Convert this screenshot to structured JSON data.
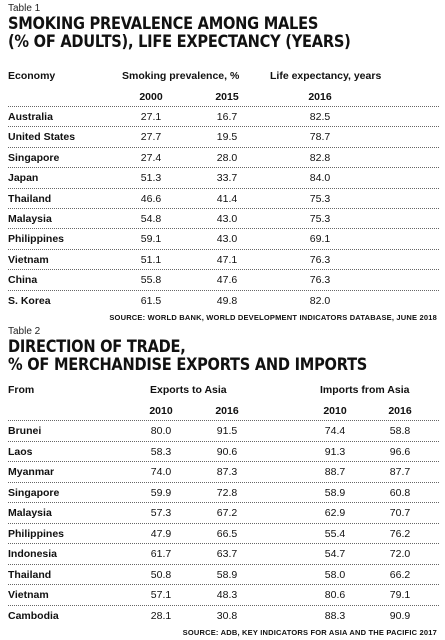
{
  "table1": {
    "label": "Table 1",
    "title_line1": "SMOKING PREVALENCE AMONG MALES",
    "title_line2": "(% OF ADULTS), LIFE EXPECTANCY (YEARS)",
    "col_economy": "Economy",
    "col_smoking": "Smoking prevalence, %",
    "col_life": "Life expectancy, years",
    "year_a": "2000",
    "year_b": "2015",
    "year_c": "2016",
    "rows": [
      {
        "name": "Australia",
        "a": "27.1",
        "b": "16.7",
        "c": "82.5"
      },
      {
        "name": "United States",
        "a": "27.7",
        "b": "19.5",
        "c": "78.7"
      },
      {
        "name": "Singapore",
        "a": "27.4",
        "b": "28.0",
        "c": "82.8"
      },
      {
        "name": "Japan",
        "a": "51.3",
        "b": "33.7",
        "c": "84.0"
      },
      {
        "name": "Thailand",
        "a": "46.6",
        "b": "41.4",
        "c": "75.3"
      },
      {
        "name": "Malaysia",
        "a": "54.8",
        "b": "43.0",
        "c": "75.3"
      },
      {
        "name": "Philippines",
        "a": "59.1",
        "b": "43.0",
        "c": "69.1"
      },
      {
        "name": "Vietnam",
        "a": "51.1",
        "b": "47.1",
        "c": "76.3"
      },
      {
        "name": "China",
        "a": "55.8",
        "b": "47.6",
        "c": "76.3"
      },
      {
        "name": "S. Korea",
        "a": "61.5",
        "b": "49.8",
        "c": "82.0"
      }
    ],
    "source": "SOURCE: WORLD BANK, WORLD DEVELOPMENT INDICATORS DATABASE, JUNE 2018"
  },
  "table2": {
    "label": "Table 2",
    "title_line1": "DIRECTION OF TRADE,",
    "title_line2": "% OF MERCHANDISE EXPORTS AND IMPORTS",
    "col_from": "From",
    "col_exports": "Exports to Asia",
    "col_imports": "Imports from Asia",
    "year_a": "2010",
    "year_b": "2016",
    "year_c": "2010",
    "year_d": "2016",
    "rows": [
      {
        "name": "Brunei",
        "a": "80.0",
        "b": "91.5",
        "c": "74.4",
        "d": "58.8"
      },
      {
        "name": "Laos",
        "a": "58.3",
        "b": "90.6",
        "c": "91.3",
        "d": "96.6"
      },
      {
        "name": "Myanmar",
        "a": "74.0",
        "b": "87.3",
        "c": "88.7",
        "d": "87.7"
      },
      {
        "name": "Singapore",
        "a": "59.9",
        "b": "72.8",
        "c": "58.9",
        "d": "60.8"
      },
      {
        "name": "Malaysia",
        "a": "57.3",
        "b": "67.2",
        "c": "62.9",
        "d": "70.7"
      },
      {
        "name": "Philippines",
        "a": "47.9",
        "b": "66.5",
        "c": "55.4",
        "d": "76.2"
      },
      {
        "name": "Indonesia",
        "a": "61.7",
        "b": "63.7",
        "c": "54.7",
        "d": "72.0"
      },
      {
        "name": "Thailand",
        "a": "50.8",
        "b": "58.9",
        "c": "58.0",
        "d": "66.2"
      },
      {
        "name": "Vietnam",
        "a": "57.1",
        "b": "48.3",
        "c": "80.6",
        "d": "79.1"
      },
      {
        "name": "Cambodia",
        "a": "28.1",
        "b": "30.8",
        "c": "88.3",
        "d": "90.9"
      }
    ],
    "source": "SOURCE: ADB, KEY INDICATORS FOR ASIA AND THE PACIFIC 2017"
  }
}
